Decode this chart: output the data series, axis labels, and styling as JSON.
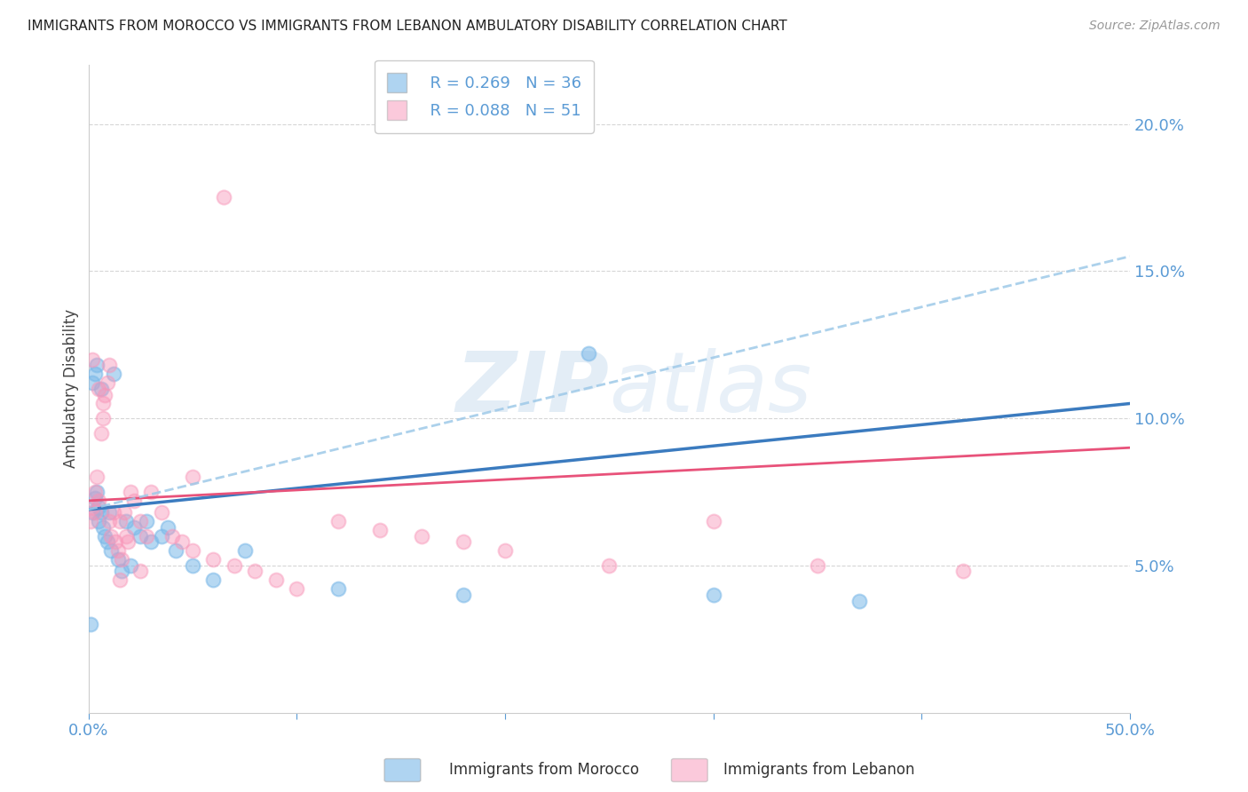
{
  "title": "IMMIGRANTS FROM MOROCCO VS IMMIGRANTS FROM LEBANON AMBULATORY DISABILITY CORRELATION CHART",
  "source": "Source: ZipAtlas.com",
  "ylabel": "Ambulatory Disability",
  "xlim": [
    0.0,
    0.5
  ],
  "ylim": [
    0.0,
    0.22
  ],
  "yticks": [
    0.05,
    0.1,
    0.15,
    0.2
  ],
  "ytick_labels": [
    "5.0%",
    "10.0%",
    "15.0%",
    "20.0%"
  ],
  "xticks": [
    0.0,
    0.1,
    0.2,
    0.3,
    0.4,
    0.5
  ],
  "xtick_labels": [
    "0.0%",
    "",
    "",
    "",
    "",
    "50.0%"
  ],
  "morocco_R": 0.269,
  "morocco_N": 36,
  "lebanon_R": 0.088,
  "lebanon_N": 51,
  "morocco_color": "#7ab8e8",
  "lebanon_color": "#f895b8",
  "morocco_line_color": "#3b7bbf",
  "lebanon_line_color": "#e8527a",
  "dashed_line_color": "#9ec9e8",
  "watermark": "ZIPatlas",
  "background_color": "#ffffff",
  "tick_color": "#5b9bd5",
  "morocco_line_x0": 0.0,
  "morocco_line_y0": 0.069,
  "morocco_line_x1": 0.5,
  "morocco_line_y1": 0.105,
  "lebanon_line_x0": 0.0,
  "lebanon_line_y0": 0.072,
  "lebanon_line_x1": 0.5,
  "lebanon_line_y1": 0.09,
  "dash_line_x0": 0.0,
  "dash_line_y0": 0.069,
  "dash_line_x1": 0.5,
  "dash_line_y1": 0.155,
  "morocco_x": [
    0.001,
    0.002,
    0.002,
    0.003,
    0.003,
    0.004,
    0.004,
    0.005,
    0.005,
    0.006,
    0.006,
    0.007,
    0.008,
    0.009,
    0.01,
    0.011,
    0.012,
    0.014,
    0.016,
    0.018,
    0.02,
    0.022,
    0.025,
    0.028,
    0.03,
    0.035,
    0.038,
    0.042,
    0.05,
    0.06,
    0.075,
    0.12,
    0.18,
    0.24,
    0.3,
    0.37
  ],
  "morocco_y": [
    0.03,
    0.068,
    0.112,
    0.073,
    0.115,
    0.075,
    0.118,
    0.07,
    0.065,
    0.11,
    0.068,
    0.063,
    0.06,
    0.058,
    0.068,
    0.055,
    0.115,
    0.052,
    0.048,
    0.065,
    0.05,
    0.063,
    0.06,
    0.065,
    0.058,
    0.06,
    0.063,
    0.055,
    0.05,
    0.045,
    0.055,
    0.042,
    0.04,
    0.122,
    0.04,
    0.038
  ],
  "lebanon_x": [
    0.001,
    0.002,
    0.002,
    0.003,
    0.003,
    0.004,
    0.005,
    0.005,
    0.006,
    0.007,
    0.007,
    0.008,
    0.009,
    0.01,
    0.01,
    0.011,
    0.012,
    0.013,
    0.014,
    0.015,
    0.016,
    0.017,
    0.018,
    0.019,
    0.02,
    0.022,
    0.025,
    0.028,
    0.03,
    0.035,
    0.04,
    0.045,
    0.05,
    0.06,
    0.07,
    0.08,
    0.09,
    0.1,
    0.12,
    0.14,
    0.16,
    0.18,
    0.2,
    0.25,
    0.3,
    0.35,
    0.42,
    0.05,
    0.065,
    0.025,
    0.015
  ],
  "lebanon_y": [
    0.065,
    0.07,
    0.12,
    0.068,
    0.075,
    0.08,
    0.11,
    0.072,
    0.095,
    0.1,
    0.105,
    0.108,
    0.112,
    0.065,
    0.118,
    0.06,
    0.068,
    0.058,
    0.055,
    0.065,
    0.052,
    0.068,
    0.06,
    0.058,
    0.075,
    0.072,
    0.065,
    0.06,
    0.075,
    0.068,
    0.06,
    0.058,
    0.055,
    0.052,
    0.05,
    0.048,
    0.045,
    0.042,
    0.065,
    0.062,
    0.06,
    0.058,
    0.055,
    0.05,
    0.065,
    0.05,
    0.048,
    0.08,
    0.175,
    0.048,
    0.045
  ]
}
